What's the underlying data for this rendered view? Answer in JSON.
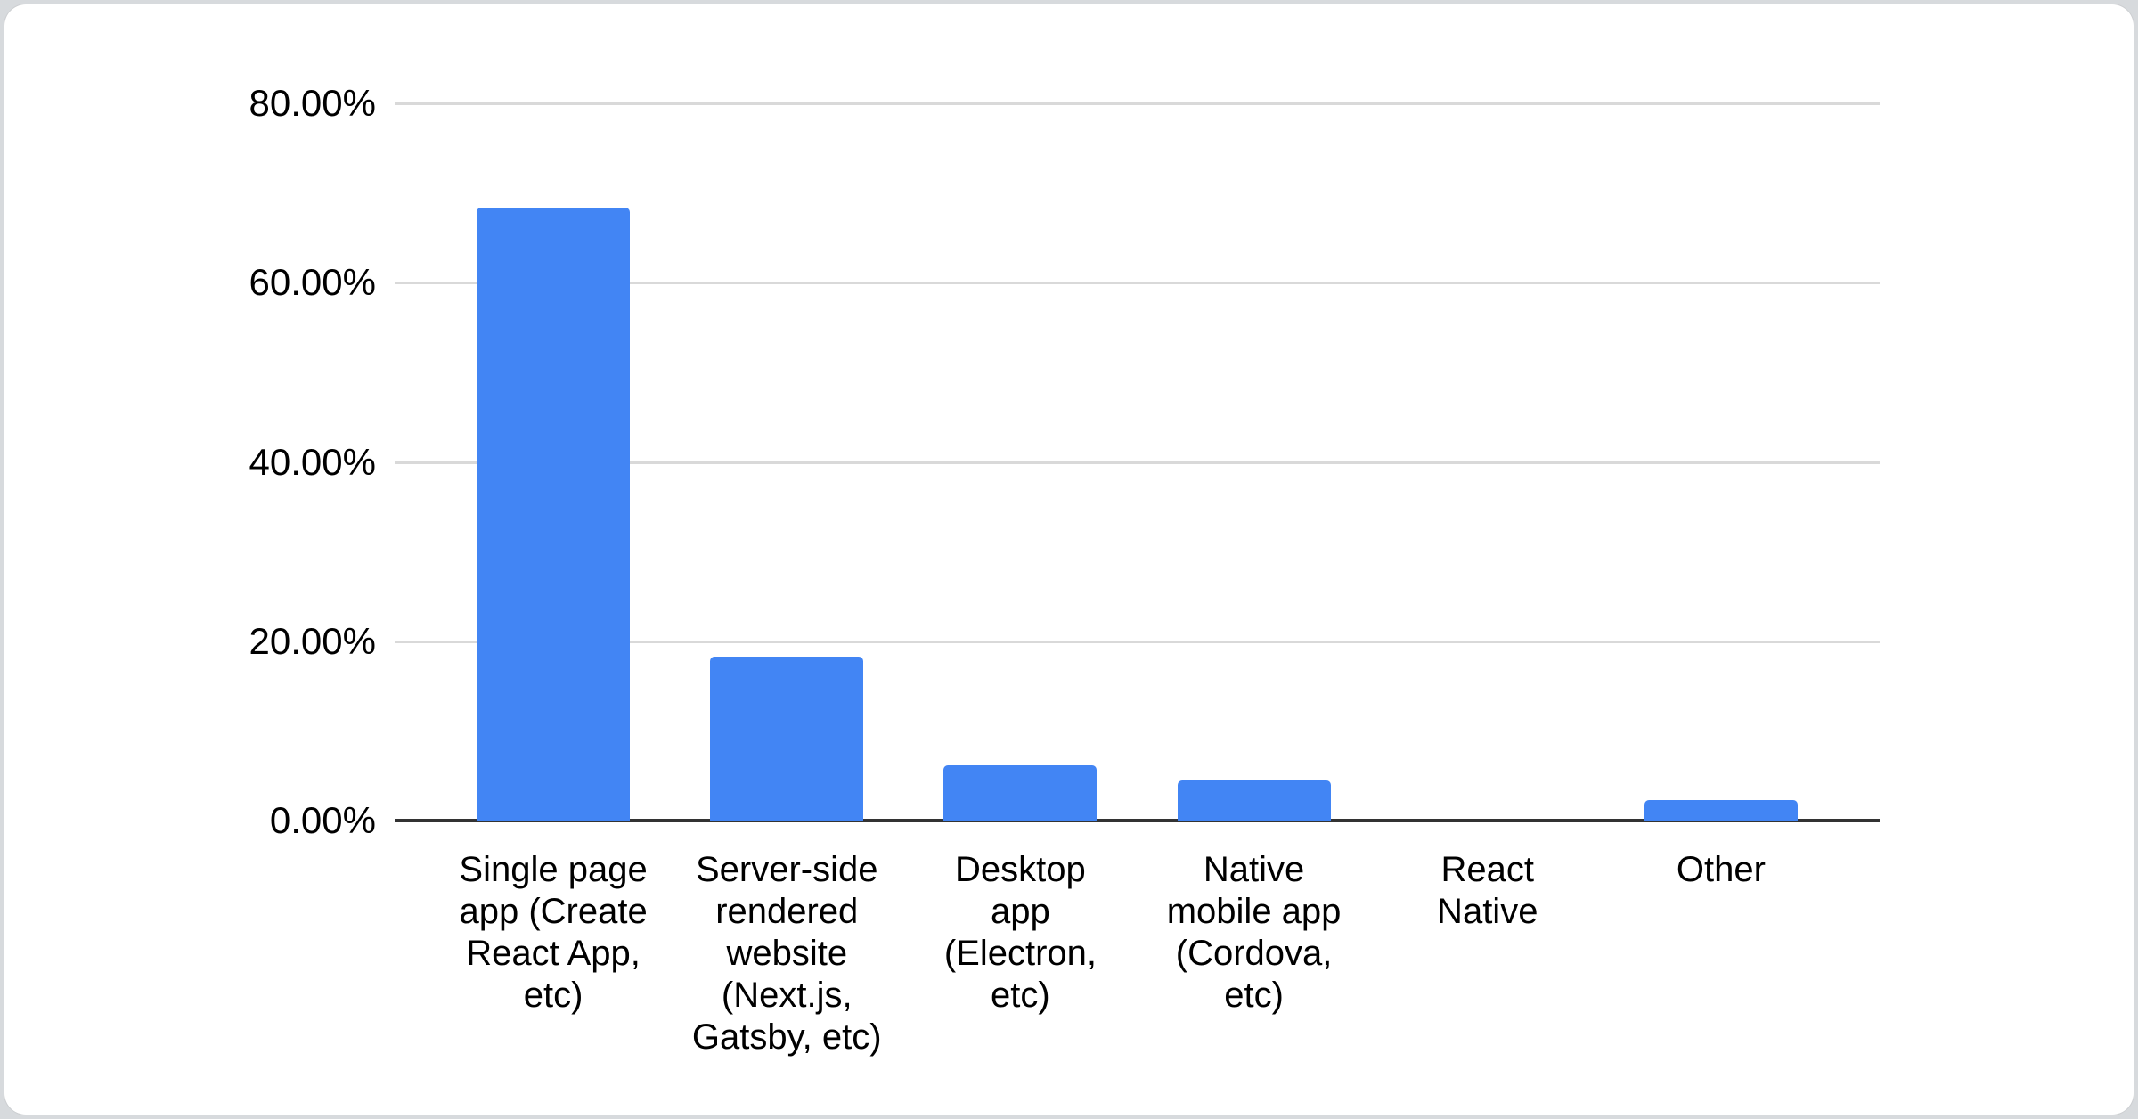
{
  "chart_data": {
    "type": "bar",
    "title": "",
    "xlabel": "",
    "ylabel": "",
    "categories": [
      "Single page app (Create React App, etc)",
      "Server-side rendered website (Next.js, Gatsby, etc)",
      "Desktop app (Electron, etc)",
      "Native mobile app (Cordova, etc)",
      "React Native",
      "Other"
    ],
    "category_lines": [
      [
        "Single page",
        "app (Create",
        "React App,",
        "etc)"
      ],
      [
        "Server-side",
        "rendered",
        "website",
        "(Next.js,",
        "Gatsby, etc)"
      ],
      [
        "Desktop",
        "app",
        "(Electron,",
        "etc)"
      ],
      [
        "Native",
        "mobile app",
        "(Cordova,",
        "etc)"
      ],
      [
        "React",
        "Native"
      ],
      [
        "Other"
      ]
    ],
    "values": [
      68.4,
      18.3,
      6.2,
      4.5,
      0,
      2.3
    ],
    "value_unit": "%",
    "ylim": [
      0,
      80
    ],
    "ytick_values": [
      80,
      60,
      40,
      20,
      0
    ],
    "ytick_labels": [
      "80.00%",
      "60.00%",
      "40.00%",
      "20.00%",
      "0.00%"
    ],
    "grid": true,
    "legend": "none",
    "bar_color": "#4285f4",
    "gridline_color": "#d9d9d9",
    "axis_color": "#333333",
    "text_color": "#000000",
    "background_color": "#ffffff"
  }
}
